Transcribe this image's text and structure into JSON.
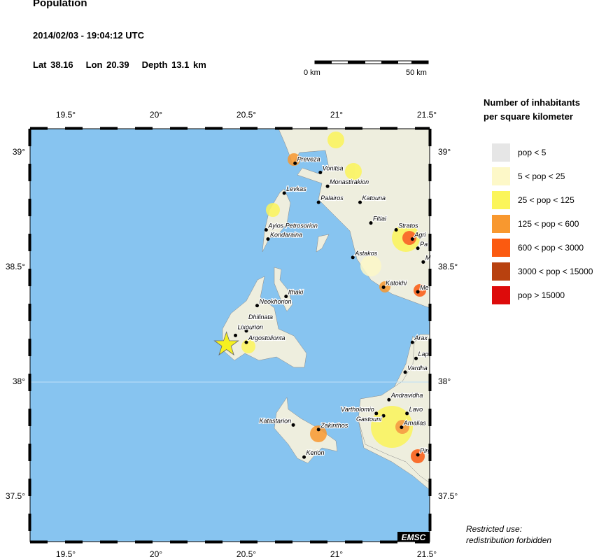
{
  "header": {
    "title": "Population",
    "datetime": "2014/02/03 - 19:04:12 UTC",
    "lat": "Lat 38.16",
    "lon": "Lon  20.39",
    "depth": "Depth  13.1 km"
  },
  "scale_bar": {
    "start": "0 km",
    "end": "50 km"
  },
  "legend": {
    "title_line1": "Number of inhabitants",
    "title_line2": "per square kilometer",
    "items": [
      {
        "label": "pop < 5",
        "color": "#e6e6e6"
      },
      {
        "label": "5 < pop < 25",
        "color": "#fdf8c8"
      },
      {
        "label": "25 < pop < 125",
        "color": "#fbf55a"
      },
      {
        "label": "125 < pop < 600",
        "color": "#f8982f"
      },
      {
        "label": "600 < pop < 3000",
        "color": "#fb5a10"
      },
      {
        "label": "3000 < pop < 15000",
        "color": "#b8410f"
      },
      {
        "label": "pop > 15000",
        "color": "#dd0b0b"
      }
    ]
  },
  "map": {
    "sea_color": "#87c4f0",
    "land_color": "#eeeede",
    "lon_ticks": [
      "19.5°",
      "20°",
      "20.5°",
      "21°",
      "21.5°"
    ],
    "lat_ticks": [
      "39°",
      "38.5°",
      "38°",
      "37.5°"
    ],
    "epicenter": {
      "lat": 38.16,
      "lon": 20.39,
      "icon": "star-icon",
      "color": "#f5f020"
    },
    "cities": [
      {
        "name": "Preveza",
        "lat": 38.95,
        "lon": 20.77
      },
      {
        "name": "Vonitsa",
        "lat": 38.91,
        "lon": 20.91
      },
      {
        "name": "Monastirakion",
        "lat": 38.85,
        "lon": 20.95
      },
      {
        "name": "Levkas",
        "lat": 38.82,
        "lon": 20.71
      },
      {
        "name": "Palairos",
        "lat": 38.78,
        "lon": 20.9
      },
      {
        "name": "Katouna",
        "lat": 38.78,
        "lon": 21.13
      },
      {
        "name": "Fitiai",
        "lat": 38.69,
        "lon": 21.19
      },
      {
        "name": "Stratos",
        "lat": 38.66,
        "lon": 21.33
      },
      {
        "name": "Agri",
        "lat": 38.62,
        "lon": 21.42
      },
      {
        "name": "Pa",
        "lat": 38.58,
        "lon": 21.45
      },
      {
        "name": "M",
        "lat": 38.52,
        "lon": 21.48
      },
      {
        "name": "Ayios Petrosorion",
        "lat": 38.66,
        "lon": 20.61
      },
      {
        "name": "Kondaraina",
        "lat": 38.62,
        "lon": 20.62
      },
      {
        "name": "Astakos",
        "lat": 38.54,
        "lon": 21.09
      },
      {
        "name": "Katokhi",
        "lat": 38.41,
        "lon": 21.26
      },
      {
        "name": "Me",
        "lat": 38.39,
        "lon": 21.45
      },
      {
        "name": "Ithaki",
        "lat": 38.37,
        "lon": 20.72
      },
      {
        "name": "Neokhorion",
        "lat": 38.33,
        "lon": 20.56
      },
      {
        "name": "Dhilinata",
        "lat": 38.22,
        "lon": 20.5
      },
      {
        "name": "Lixourion",
        "lat": 38.2,
        "lon": 20.44
      },
      {
        "name": "Argostolionta",
        "lat": 38.17,
        "lon": 20.5
      },
      {
        "name": "Arax",
        "lat": 38.17,
        "lon": 21.42
      },
      {
        "name": "Lap",
        "lat": 38.1,
        "lon": 21.44
      },
      {
        "name": "Vardha",
        "lat": 38.04,
        "lon": 21.38
      },
      {
        "name": "Andravidha",
        "lat": 37.92,
        "lon": 21.29
      },
      {
        "name": "Vartholomio",
        "lat": 37.86,
        "lon": 21.22
      },
      {
        "name": "Gastouni",
        "lat": 37.85,
        "lon": 21.26
      },
      {
        "name": "Lavo",
        "lat": 37.86,
        "lon": 21.39
      },
      {
        "name": "Amalias",
        "lat": 37.8,
        "lon": 21.36
      },
      {
        "name": "Pirg",
        "lat": 37.68,
        "lon": 21.45
      },
      {
        "name": "Katastarion",
        "lat": 37.81,
        "lon": 20.76
      },
      {
        "name": "Zakinthos",
        "lat": 37.79,
        "lon": 20.9
      },
      {
        "name": "Kerion",
        "lat": 37.67,
        "lon": 20.82
      }
    ]
  },
  "watermark": "EMSC",
  "note": {
    "line1": "Restricted use:",
    "line2": "redistribution forbidden"
  }
}
